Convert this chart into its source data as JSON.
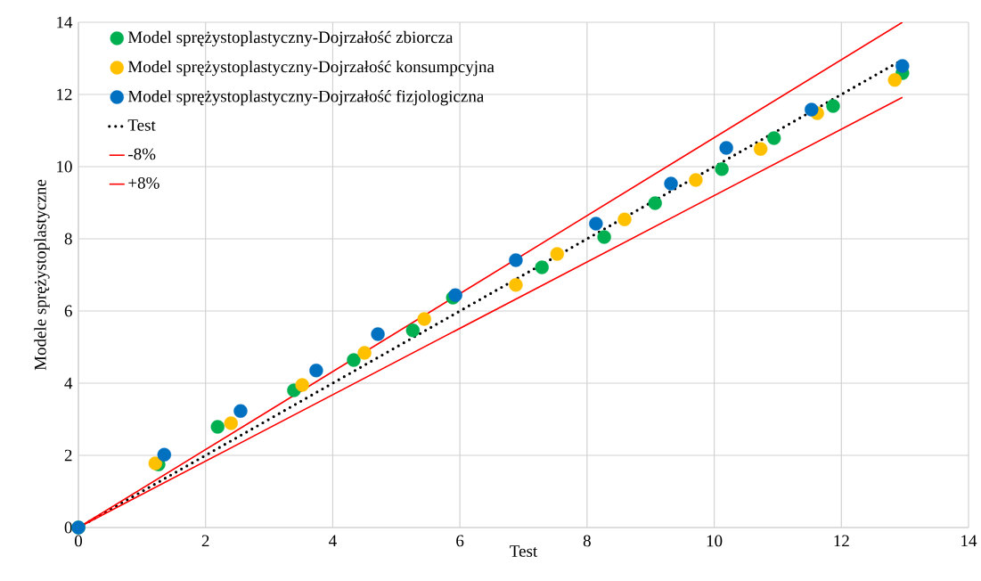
{
  "chart_data": {
    "type": "scatter",
    "xlabel": "Test",
    "ylabel": "Modele sprężystoplastyczne",
    "xlim": [
      0,
      14
    ],
    "ylim": [
      0,
      14
    ],
    "xticks": [
      0,
      2,
      4,
      6,
      8,
      10,
      12,
      14
    ],
    "yticks": [
      0,
      2,
      4,
      6,
      8,
      10,
      12,
      14
    ],
    "grid": true,
    "legend": "top left",
    "series": [
      {
        "name": "Model sprężystoplastyczny-Dojrzałość zbiorcza",
        "marker": "circle",
        "color": "#00b050",
        "x": [
          0,
          1.26,
          2.19,
          3.39,
          4.33,
          5.26,
          5.89,
          7.29,
          8.27,
          9.07,
          10.12,
          10.94,
          11.87,
          12.96
        ],
        "values": [
          0,
          1.75,
          2.79,
          3.8,
          4.64,
          5.46,
          6.37,
          7.21,
          8.05,
          8.99,
          9.93,
          10.79,
          11.68,
          12.59
        ]
      },
      {
        "name": "Model sprężystoplastyczny-Dojrzałość konsumpcyjna",
        "marker": "circle",
        "color": "#ffc000",
        "x": [
          1.21,
          2.4,
          3.52,
          4.5,
          5.44,
          6.88,
          7.53,
          8.59,
          9.71,
          10.73,
          11.62,
          12.84
        ],
        "values": [
          1.78,
          2.89,
          3.95,
          4.84,
          5.78,
          6.72,
          7.58,
          8.54,
          9.63,
          10.49,
          11.48,
          12.4
        ]
      },
      {
        "name": "Model sprężystoplastyczny-Dojrzałość fizjologiczna",
        "marker": "circle",
        "color": "#0070c0",
        "x": [
          0,
          1.35,
          2.55,
          3.74,
          4.71,
          5.93,
          6.88,
          8.14,
          9.32,
          10.19,
          11.53,
          12.96
        ],
        "values": [
          0,
          2.02,
          3.23,
          4.35,
          5.36,
          6.44,
          7.41,
          8.42,
          9.53,
          10.52,
          11.58,
          12.79
        ]
      },
      {
        "name": "Test",
        "type": "line",
        "marker": "none",
        "line_style": "dotted",
        "color": "#000000",
        "x": [
          0,
          12.96
        ],
        "values": [
          0,
          12.96
        ]
      },
      {
        "name": "-8%",
        "type": "line",
        "marker": "none",
        "line_style": "solid",
        "color": "#ff0000",
        "x": [
          0,
          12.96
        ],
        "values": [
          0,
          11.92
        ]
      },
      {
        "name": "+8%",
        "type": "line",
        "marker": "none",
        "line_style": "solid",
        "color": "#ff0000",
        "x": [
          0,
          12.96
        ],
        "values": [
          0,
          14
        ]
      }
    ]
  }
}
